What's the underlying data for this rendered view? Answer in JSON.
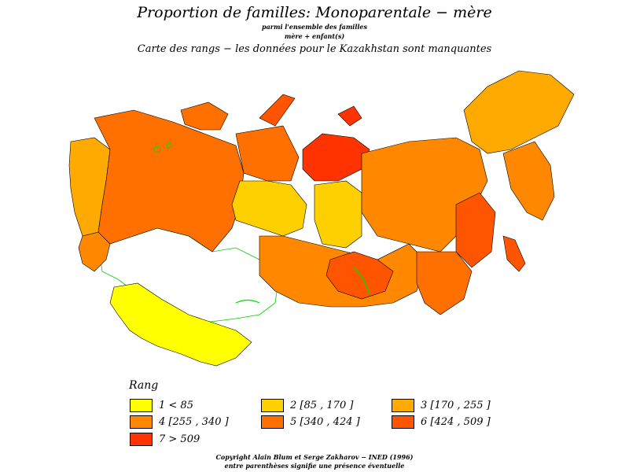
{
  "title": "Proportion  de  familles:  Monoparentale  −  mère",
  "subtitle_line1": "parmi  l'ensemble  des  familles",
  "subtitle_line2": "mère  +  enfant(s)",
  "subtitle": "Carte  des  rangs  −  les  données  pour  le  Kazakhstan  sont  manquantes",
  "legend": {
    "title": "Rang",
    "items": [
      {
        "label": "1  <  85",
        "color": "#ffff00"
      },
      {
        "label": "2  [85  ,  170  ]",
        "color": "#ffd000"
      },
      {
        "label": "3  [170  ,  255  ]",
        "color": "#ffaa00"
      },
      {
        "label": "4  [255  ,  340  ]",
        "color": "#ff8800"
      },
      {
        "label": "5  [340  ,  424  ]",
        "color": "#ff7000"
      },
      {
        "label": "6  [424  ,  509  ]",
        "color": "#ff5500"
      },
      {
        "label": "7  >  509",
        "color": "#ff3300"
      }
    ]
  },
  "copyright": "Copyright  Alain  Blum  et  Serge  Zakharov  −  INED  (1996)",
  "note": "entre  parenthèses  signifie  une  présence  éventuelle",
  "colors": {
    "missing": "#ffffff",
    "border": "#000000",
    "water": "#00dd00"
  }
}
